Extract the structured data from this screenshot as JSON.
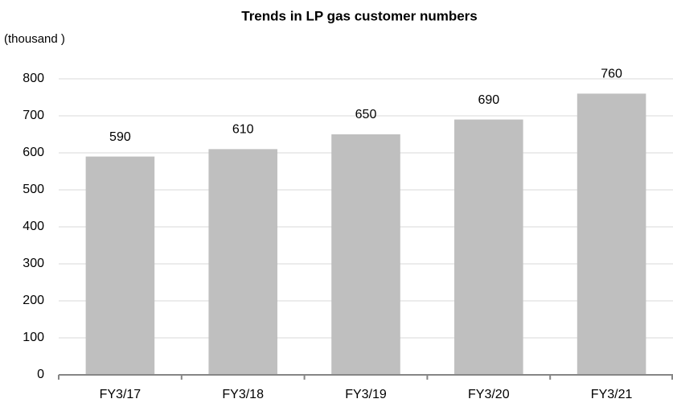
{
  "chart_data": {
    "type": "bar",
    "title": "Trends in LP gas customer numbers",
    "y_label": "(thousand )",
    "categories": [
      "FY3/17",
      "FY3/18",
      "FY3/19",
      "FY3/20",
      "FY3/21"
    ],
    "values": [
      590,
      610,
      650,
      690,
      760
    ],
    "color": "#bfbfbf",
    "ylim": [
      0,
      800
    ],
    "yticks": [
      0,
      100,
      200,
      300,
      400,
      500,
      600,
      700,
      800
    ],
    "grid": true
  }
}
